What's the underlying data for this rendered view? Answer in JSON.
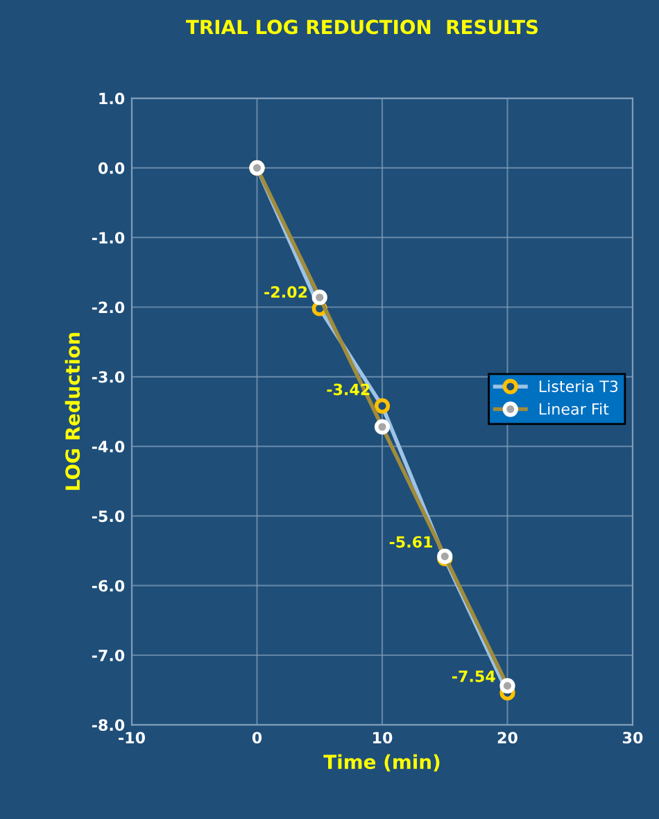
{
  "chart_data": {
    "type": "line",
    "title": "TRIAL LOG REDUCTION  RESULTS",
    "xlabel": "Time (min)",
    "ylabel": "LOG Reduction",
    "xlim": [
      -10,
      30
    ],
    "xticks": [
      -10,
      0,
      10,
      20,
      30
    ],
    "ylim": [
      -8,
      1
    ],
    "yticks": [
      {
        "value": 1,
        "label": "1.0"
      },
      {
        "value": 0,
        "label": "0.0"
      },
      {
        "value": -1,
        "label": "-1.0"
      },
      {
        "value": -2,
        "label": "-2.0"
      },
      {
        "value": -3,
        "label": "-3.0"
      },
      {
        "value": -4,
        "label": "-4.0"
      },
      {
        "value": -5,
        "label": "-5.0"
      },
      {
        "value": -6,
        "label": "-6.0"
      },
      {
        "value": -7,
        "label": "-7.0"
      },
      {
        "value": -8,
        "label": "-8.0"
      }
    ],
    "grid": true,
    "legend": "right",
    "marker": "circle",
    "line_style": "solid",
    "series": [
      {
        "name": "Listeria T3",
        "color": "#9dc3e6",
        "x": [
          0,
          5,
          10,
          15,
          20
        ],
        "values": [
          0,
          -2.02,
          -3.42,
          -5.61,
          -7.54
        ],
        "value_labels": [
          null,
          "-2.02",
          "-3.42",
          "-5.61",
          "-7.54"
        ]
      },
      {
        "name": "Linear Fit",
        "color": "#a08c3c",
        "x": [
          0,
          5,
          10,
          15,
          20
        ],
        "values": [
          0,
          -1.86,
          -3.72,
          -5.58,
          -7.44
        ]
      }
    ]
  }
}
